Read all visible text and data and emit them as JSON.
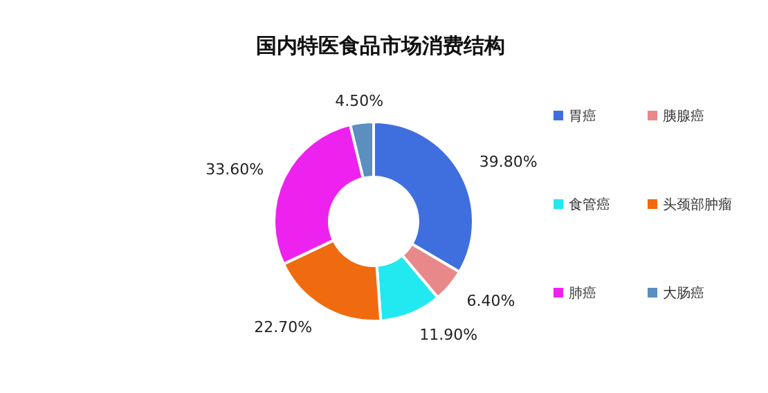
{
  "chart_data": {
    "type": "donut",
    "title": "国内特医食品市场消费结构",
    "categories": [
      "胃癌",
      "胰腺癌",
      "食管癌",
      "头颈部肿瘤",
      "肺癌",
      "大肠癌"
    ],
    "values": [
      39.8,
      6.4,
      11.9,
      22.7,
      33.6,
      4.5
    ],
    "value_labels": [
      "39.80%",
      "6.40%",
      "11.90%",
      "22.70%",
      "33.60%",
      "4.50%"
    ],
    "colors": [
      "#3f6fde",
      "#e8888a",
      "#22e8f0",
      "#f06a10",
      "#ee22ee",
      "#5a8fc0"
    ],
    "legend": "right"
  }
}
